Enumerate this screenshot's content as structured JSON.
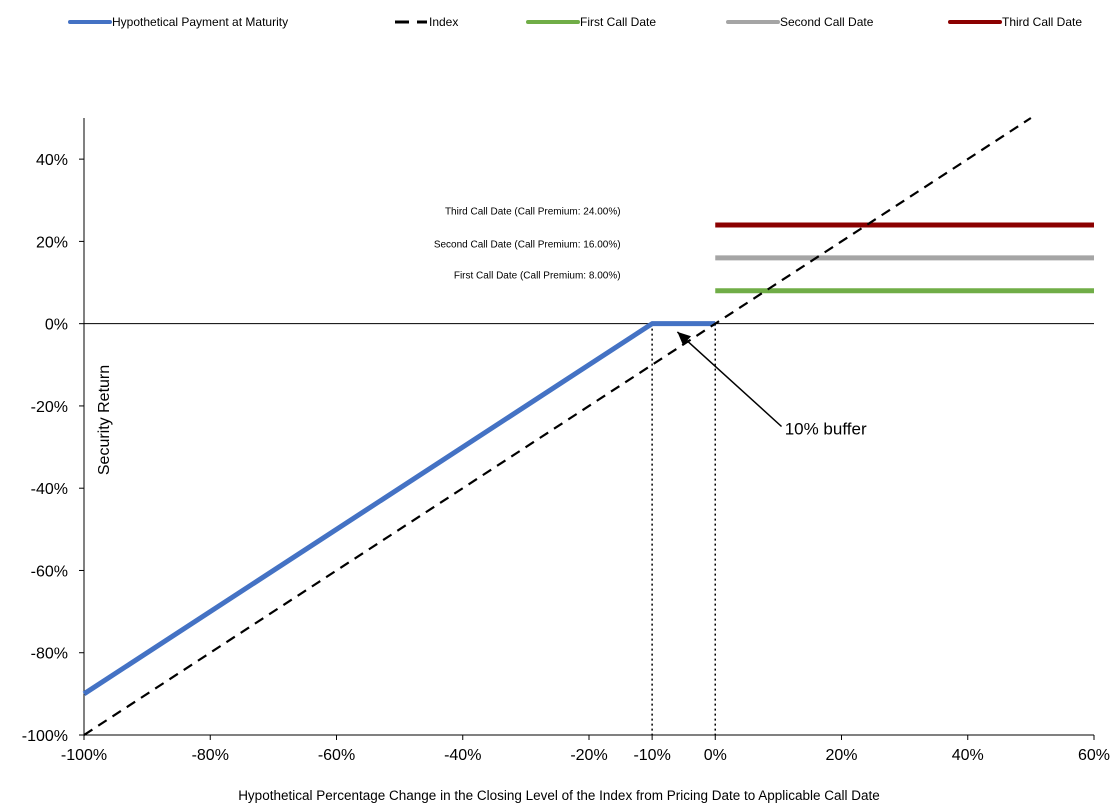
{
  "chart_data": {
    "type": "line",
    "title": "",
    "xlabel": "Hypothetical Percentage Change in the Closing Level of the Index from Pricing Date to Applicable Call Date",
    "ylabel": "Security Return",
    "xlim": [
      -100,
      60
    ],
    "ylim": [
      -100,
      50
    ],
    "x_ticks": [
      {
        "value": -100,
        "label": "-100%"
      },
      {
        "value": -80,
        "label": "-80%"
      },
      {
        "value": -60,
        "label": "-60%"
      },
      {
        "value": -40,
        "label": "-40%"
      },
      {
        "value": -20,
        "label": "-20%"
      },
      {
        "value": -10,
        "label": "-10%"
      },
      {
        "value": 0,
        "label": "0%"
      },
      {
        "value": 20,
        "label": "20%"
      },
      {
        "value": 40,
        "label": "40%"
      },
      {
        "value": 60,
        "label": "60%"
      }
    ],
    "y_ticks": [
      {
        "value": 40,
        "label": "40%"
      },
      {
        "value": 20,
        "label": "20%"
      },
      {
        "value": 0,
        "label": "0%"
      },
      {
        "value": -20,
        "label": "-20%"
      },
      {
        "value": -40,
        "label": "-40%"
      },
      {
        "value": -60,
        "label": "-60%"
      },
      {
        "value": -80,
        "label": "-80%"
      },
      {
        "value": -100,
        "label": "-100%"
      }
    ],
    "legend_position": "top",
    "grid": false,
    "series": [
      {
        "name": "Hypothetical Payment at Maturity",
        "color": "#4472c4",
        "style": "solid",
        "x": [
          -100,
          -10,
          0
        ],
        "y": [
          -90,
          0,
          0
        ]
      },
      {
        "name": "Index",
        "color": "#000000",
        "style": "dashed",
        "x": [
          -100,
          50
        ],
        "y": [
          -100,
          50
        ]
      },
      {
        "name": "First Call Date",
        "color": "#70ad47",
        "style": "solid",
        "x": [
          0,
          60
        ],
        "y": [
          8,
          8
        ]
      },
      {
        "name": "Second Call Date",
        "color": "#a5a5a5",
        "style": "solid",
        "x": [
          0,
          60
        ],
        "y": [
          16,
          16
        ]
      },
      {
        "name": "Third Call Date",
        "color": "#8b0000",
        "style": "solid",
        "x": [
          0,
          60
        ],
        "y": [
          24,
          24
        ]
      }
    ],
    "reference_lines": [
      {
        "x": -10,
        "style": "dotted"
      },
      {
        "x": 0,
        "style": "dotted"
      }
    ],
    "annotations": [
      {
        "text": "Third Call Date (Call Premium: 24.00%)",
        "x": -15,
        "y": 26.5
      },
      {
        "text": "Second Call Date (Call Premium: 16.00%)",
        "x": -15,
        "y": 18.5
      },
      {
        "text": "First Call Date (Call Premium: 8.00%)",
        "x": -15,
        "y": 11
      },
      {
        "text": "10% buffer",
        "x": 11,
        "y": -27
      }
    ],
    "buffer_arrow": {
      "from_x": 10.5,
      "from_y": -25,
      "to_x": -6,
      "to_y": -2
    }
  }
}
